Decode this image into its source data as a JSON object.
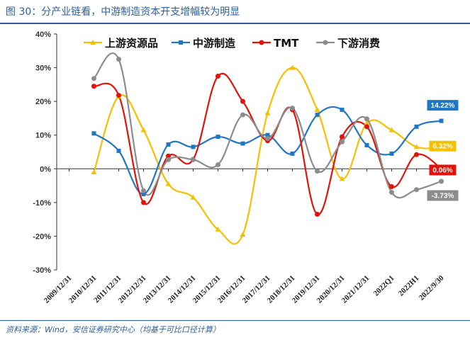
{
  "figure": {
    "title": "图 30：分产业链看，中游制造资本开支增幅较为明显",
    "source": "资料来源：Wind，安信证券研究中心（均基于可比口径计算）"
  },
  "chart_data": {
    "type": "line",
    "title": "",
    "xlabel": "",
    "ylabel": "",
    "ylim": [
      -30,
      40
    ],
    "yticks": [
      -30,
      -20,
      -10,
      0,
      10,
      20,
      30,
      40
    ],
    "ytick_labels": [
      "-30%",
      "-20%",
      "-10%",
      "0%",
      "10%",
      "20%",
      "30%",
      "40%"
    ],
    "grid": false,
    "legend_position": "top",
    "categories": [
      "2009/12/31",
      "2010/12/31",
      "2011/12/31",
      "2012/12/31",
      "2013/12/31",
      "2014/12/31",
      "2015/12/31",
      "2016/12/31",
      "2017/12/31",
      "2018/12/31",
      "2019/12/31",
      "2020/12/31",
      "2021/12/31",
      "2022Q1",
      "2022H1",
      "2022/9/30"
    ],
    "series": [
      {
        "name": "上游资源品",
        "color": "#f5c000",
        "marker": "triangle",
        "values": [
          null,
          -1.0,
          21.5,
          11.5,
          -4.5,
          -8.5,
          -18.0,
          -19.5,
          16.5,
          30.0,
          17.5,
          -3.0,
          13.5,
          11.5,
          6.5,
          6.32
        ],
        "end_label": "6.32%"
      },
      {
        "name": "中游制造",
        "color": "#1f77c4",
        "marker": "square",
        "values": [
          null,
          10.5,
          5.3,
          -7.5,
          7.2,
          6.5,
          9.5,
          7.5,
          10.0,
          4.5,
          16.0,
          17.5,
          7.0,
          4.5,
          12.5,
          14.22
        ],
        "end_label": "14.22%"
      },
      {
        "name": "TMT",
        "color": "#e3120b",
        "marker": "circle",
        "values": [
          null,
          24.5,
          21.8,
          -10.0,
          3.8,
          2.8,
          27.5,
          20.0,
          8.3,
          17.5,
          -13.5,
          9.5,
          12.5,
          -5.3,
          4.2,
          0.06
        ],
        "end_label": "0.06%"
      },
      {
        "name": "下游消费",
        "color": "#8c8c8c",
        "marker": "circle",
        "values": [
          null,
          26.8,
          32.5,
          -6.5,
          2.7,
          2.7,
          1.2,
          16.0,
          9.0,
          18.0,
          -0.7,
          8.0,
          14.8,
          -7.0,
          -6.2,
          -3.73
        ],
        "end_label": "-3.73%"
      }
    ]
  }
}
